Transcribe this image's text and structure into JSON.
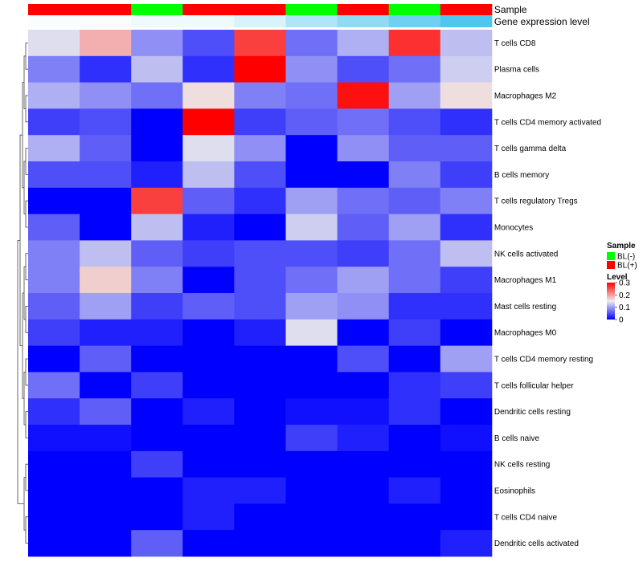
{
  "chart_data": {
    "type": "heatmap",
    "annotation_tracks": [
      {
        "name": "Sample",
        "values": [
          "BL(+)",
          "BL(+)",
          "BL(-)",
          "BL(+)",
          "BL(+)",
          "BL(-)",
          "BL(+)",
          "BL(-)",
          "BL(+)"
        ]
      },
      {
        "name": "Gene expression level",
        "values": [
          0.02,
          0.02,
          0.05,
          0.05,
          0.12,
          0.25,
          0.35,
          0.45,
          0.55
        ]
      }
    ],
    "rows": [
      "T cells CD8",
      "Plasma cells",
      "Macrophages M2",
      "T cells CD4 memory activated",
      "T cells gamma delta",
      "B cells memory",
      "T cells regulatory  Tregs",
      "Monocytes",
      "NK cells activated",
      "Macrophages M1",
      "Mast cells resting",
      "Macrophages M0",
      "T cells CD4 memory resting",
      "T cells follicular helper",
      "Dendritic cells resting",
      "B cells naive",
      "NK cells resting",
      "Eosinophils",
      "T cells CD4 naive",
      "Dendritic cells activated"
    ],
    "values": [
      [
        0.14,
        0.19,
        0.09,
        0.05,
        0.26,
        0.07,
        0.11,
        0.27,
        0.12
      ],
      [
        0.08,
        0.03,
        0.12,
        0.03,
        0.3,
        0.09,
        0.05,
        0.07,
        0.13
      ],
      [
        0.11,
        0.09,
        0.07,
        0.16,
        0.08,
        0.07,
        0.29,
        0.1,
        0.16
      ],
      [
        0.04,
        0.05,
        0.0,
        0.3,
        0.04,
        0.06,
        0.07,
        0.05,
        0.03
      ],
      [
        0.11,
        0.06,
        0.0,
        0.14,
        0.09,
        0.0,
        0.09,
        0.06,
        0.06
      ],
      [
        0.05,
        0.05,
        0.02,
        0.12,
        0.05,
        0.0,
        0.0,
        0.08,
        0.04
      ],
      [
        0.0,
        0.0,
        0.26,
        0.06,
        0.03,
        0.1,
        0.07,
        0.06,
        0.08
      ],
      [
        0.06,
        0.0,
        0.12,
        0.02,
        0.0,
        0.13,
        0.06,
        0.1,
        0.03
      ],
      [
        0.08,
        0.12,
        0.06,
        0.04,
        0.05,
        0.05,
        0.04,
        0.07,
        0.12
      ],
      [
        0.08,
        0.17,
        0.08,
        0.0,
        0.05,
        0.07,
        0.1,
        0.07,
        0.04
      ],
      [
        0.06,
        0.1,
        0.04,
        0.06,
        0.05,
        0.1,
        0.09,
        0.03,
        0.03
      ],
      [
        0.04,
        0.02,
        0.02,
        0.0,
        0.02,
        0.14,
        0.0,
        0.04,
        0.0
      ],
      [
        0.0,
        0.06,
        0.0,
        0.0,
        0.0,
        0.0,
        0.05,
        0.0,
        0.1
      ],
      [
        0.07,
        0.0,
        0.04,
        0.0,
        0.0,
        0.0,
        0.0,
        0.03,
        0.04
      ],
      [
        0.03,
        0.06,
        0.0,
        0.02,
        0.0,
        0.01,
        0.01,
        0.03,
        0.0
      ],
      [
        0.01,
        0.01,
        0.0,
        0.0,
        0.0,
        0.04,
        0.02,
        0.0,
        0.01
      ],
      [
        0.0,
        0.0,
        0.04,
        0.0,
        0.0,
        0.0,
        0.0,
        0.0,
        0.0
      ],
      [
        0.0,
        0.0,
        0.0,
        0.02,
        0.02,
        0.0,
        0.0,
        0.02,
        0.0
      ],
      [
        0.0,
        0.0,
        0.0,
        0.02,
        0.0,
        0.0,
        0.0,
        0.0,
        0.0
      ],
      [
        0.0,
        0.0,
        0.06,
        0.0,
        0.0,
        0.0,
        0.0,
        0.0,
        0.02
      ]
    ],
    "color_scale": {
      "low": "#0000ff",
      "mid": "#eeeeee",
      "high": "#ff0000",
      "min": 0,
      "mid_value": 0.15,
      "max": 0.3
    },
    "legends": {
      "sample": {
        "title": "Sample",
        "entries": [
          {
            "label": "BL(-)",
            "color": "#00ff00"
          },
          {
            "label": "BL(+)",
            "color": "#ff0000"
          }
        ]
      },
      "level": {
        "title": "Level",
        "ticks": [
          "0.3",
          "0.2",
          "0.1",
          "0"
        ],
        "tick_values": [
          0.3,
          0.2,
          0.1,
          0
        ]
      }
    },
    "gene_expression_scale": {
      "low": "#ffffff",
      "high": "#3fc1ec",
      "min": 0,
      "max": 0.6
    },
    "dendrogram": "row",
    "legend_placement": "right"
  }
}
